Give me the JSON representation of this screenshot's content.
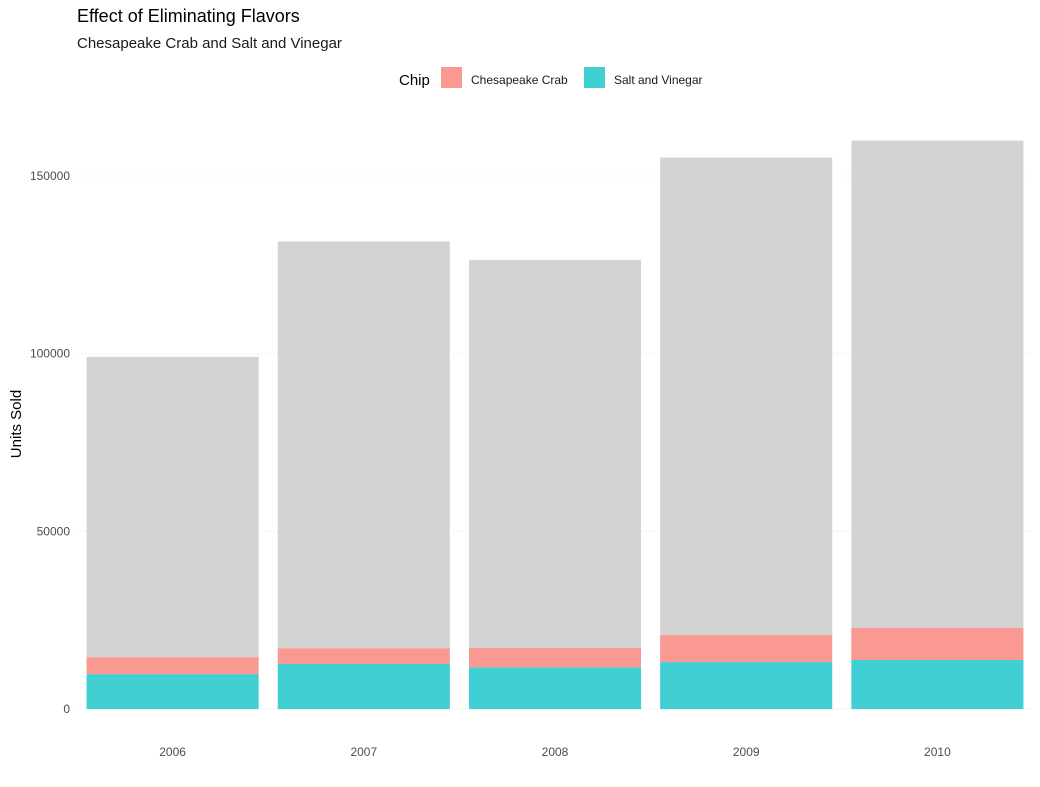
{
  "chart_data": {
    "type": "bar",
    "stacked": true,
    "title": "Effect of Eliminating Flavors",
    "subtitle": "Chesapeake Crab and Salt and Vinegar",
    "xlabel": "",
    "ylabel": "Units Sold",
    "categories": [
      "2006",
      "2007",
      "2008",
      "2009",
      "2010"
    ],
    "y_ticks": [
      0,
      50000,
      100000,
      150000
    ],
    "y_tick_labels": [
      "0",
      "50000",
      "100000",
      "150000"
    ],
    "ylim": [
      0,
      160000
    ],
    "legend": {
      "title": "Chip",
      "position": "top",
      "entries": [
        {
          "label": "Chesapeake Crab",
          "color": "#F8766D"
        },
        {
          "label": "Salt and Vinegar",
          "color": "#00BFC4"
        }
      ]
    },
    "series": [
      {
        "name": "Salt and Vinegar",
        "color": "#00BFC4",
        "opacity": 0.75,
        "values": [
          9800,
          12700,
          11700,
          13200,
          13800
        ]
      },
      {
        "name": "Chesapeake Crab",
        "color": "#F8766D",
        "opacity": 0.75,
        "values": [
          4800,
          4400,
          5500,
          7600,
          9000
        ]
      },
      {
        "color": "#D3D3D3",
        "values": [
          84500,
          114500,
          109200,
          134400,
          137200
        ]
      }
    ],
    "totals": [
      99100,
      131600,
      126400,
      155200,
      160000
    ],
    "grid": {
      "major_y": true,
      "major_x": false,
      "style": "dotted"
    }
  }
}
